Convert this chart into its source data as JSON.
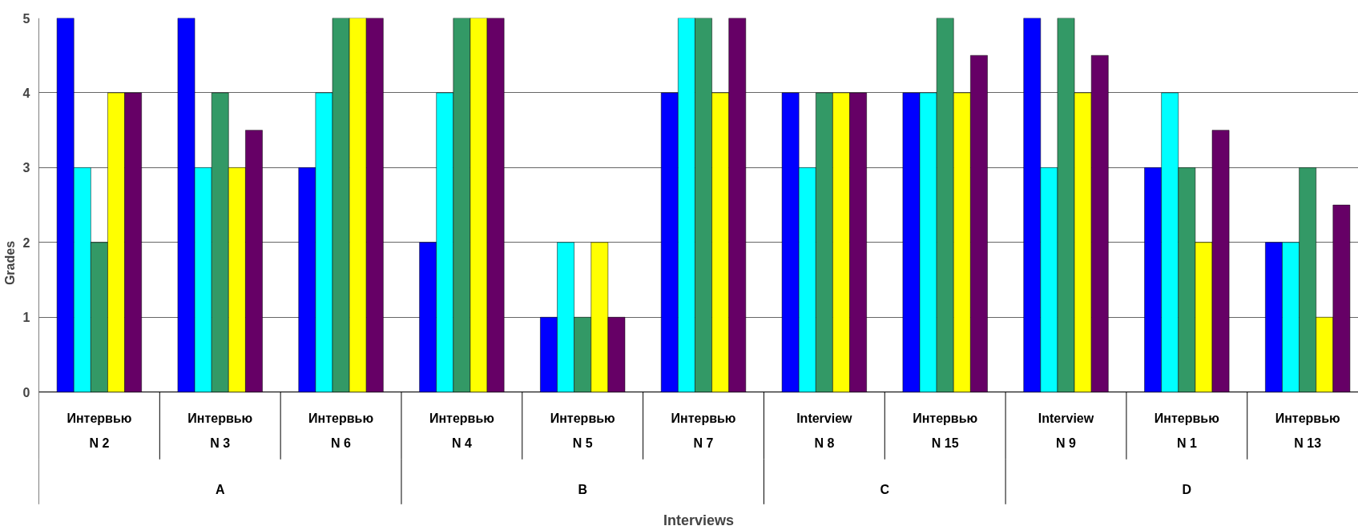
{
  "chart_data": {
    "type": "bar",
    "ylabel": "Grades",
    "xlabel": "Interviews",
    "categories": [
      "Интервью\nN 2",
      "Интервью\nN 3",
      "Интервью\nN 6",
      "Интервью\nN 4",
      "Интервью\nN 5",
      "Интервью\nN 7",
      "Interview\nN 8",
      "Интервью\nN 15",
      "Interview\nN 9",
      "Интервью\nN 1",
      "Интервью\nN 13"
    ],
    "series": [
      {
        "color": "#0000ff",
        "values": [
          5,
          5,
          3,
          2,
          1,
          4,
          4,
          4,
          5,
          3,
          2
        ]
      },
      {
        "color": "#00ffff",
        "values": [
          3,
          3,
          4,
          4,
          2,
          5,
          3,
          4,
          3,
          4,
          2
        ]
      },
      {
        "color": "#339966",
        "values": [
          2,
          4,
          5,
          5,
          1,
          5,
          4,
          5,
          5,
          3,
          3
        ]
      },
      {
        "color": "#ffff00",
        "values": [
          4,
          3,
          5,
          5,
          2,
          4,
          4,
          4,
          4,
          2,
          1
        ]
      },
      {
        "color": "#660066",
        "values": [
          4,
          3.5,
          5,
          5,
          1,
          5,
          4,
          4.5,
          4.5,
          3.5,
          2.5
        ]
      }
    ],
    "annotations": [
      "A",
      "B",
      "C",
      "D"
    ],
    "ylim": [
      0,
      5
    ],
    "yticks": [
      0,
      1,
      2,
      3,
      4,
      5
    ],
    "grid": "y"
  }
}
